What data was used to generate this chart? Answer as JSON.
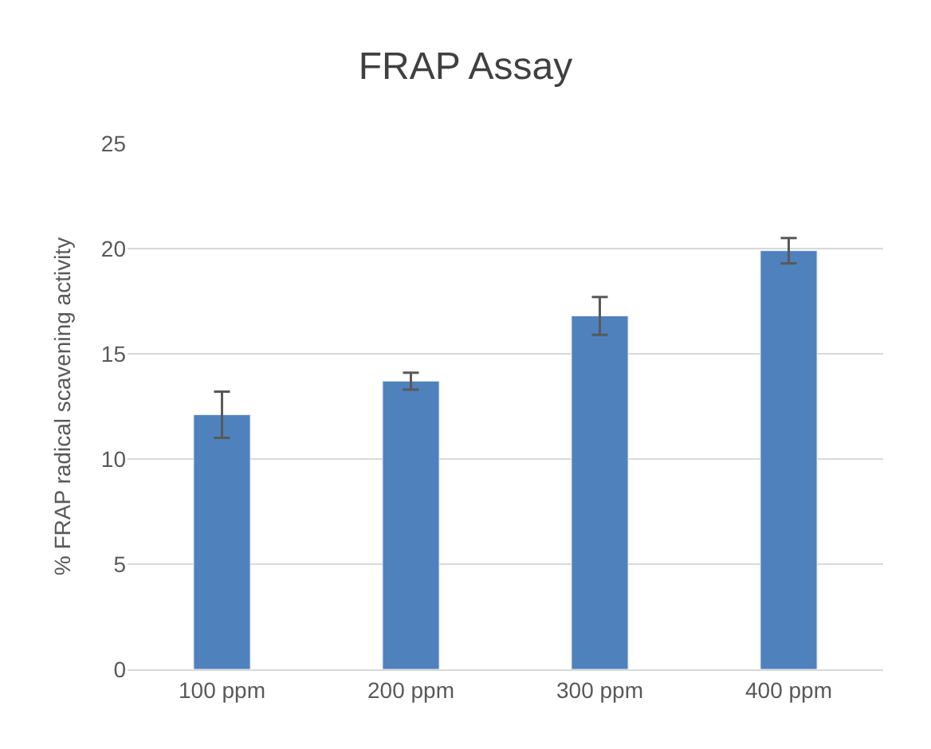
{
  "chart_data": {
    "type": "bar",
    "title": "FRAP Assay",
    "ylabel": "% FRAP radical scavening activity",
    "categories": [
      "100 ppm",
      "200 ppm",
      "300 ppm",
      "400 ppm"
    ],
    "values": [
      12.1,
      13.7,
      16.8,
      19.9
    ],
    "errors": [
      1.1,
      0.4,
      0.9,
      0.6
    ],
    "color": "#4f81bd",
    "ylim": [
      0,
      25
    ],
    "yticks": [
      0,
      5,
      10,
      15,
      20,
      25
    ],
    "grid": "y"
  }
}
